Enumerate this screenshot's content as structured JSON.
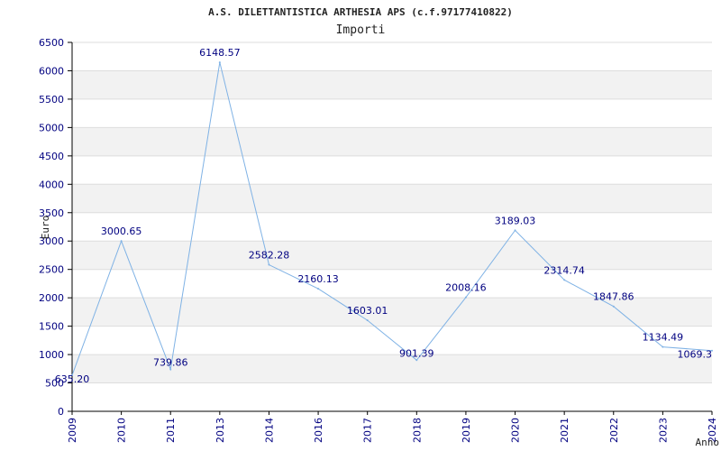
{
  "chart_data": {
    "type": "line",
    "title": "A.S. DILETTANTISTICA ARTHESIA APS (c.f.97177410822)",
    "subtitle": "Importi",
    "xlabel": "Anno",
    "ylabel": "Euro",
    "categories": [
      "2009",
      "2010",
      "2011",
      "2013",
      "2014",
      "2016",
      "2017",
      "2018",
      "2019",
      "2020",
      "2021",
      "2022",
      "2023",
      "2024"
    ],
    "series": [
      {
        "values": [
          635.2,
          3000.65,
          739.86,
          6148.57,
          2582.28,
          2160.13,
          1603.01,
          901.39,
          2008.16,
          3189.03,
          2314.74,
          1847.86,
          1134.49,
          1069.3
        ],
        "labels": [
          "635.20",
          "3000.65",
          "739.86",
          "6148.57",
          "2582.28",
          "2160.13",
          "1603.01",
          "901.39",
          "2008.16",
          "3189.03",
          "2314.74",
          "1847.86",
          "1134.49",
          "1069.3"
        ]
      }
    ],
    "ylim": [
      0,
      6500
    ],
    "yticks": [
      0,
      500,
      1000,
      1500,
      2000,
      2500,
      3000,
      3500,
      4000,
      4500,
      5000,
      5500,
      6000,
      6500
    ],
    "ytick_labels": [
      "0",
      "500",
      "1000",
      "1500",
      "2000",
      "2500",
      "3000",
      "3500",
      "4000",
      "4500",
      "5000",
      "5500",
      "6000",
      "6500"
    ],
    "grid": true,
    "colors": {
      "line": "#7fb2e5",
      "text": "#000080",
      "band": "#f2f2f2",
      "grid": "#dddddd",
      "axis": "#000000"
    }
  }
}
